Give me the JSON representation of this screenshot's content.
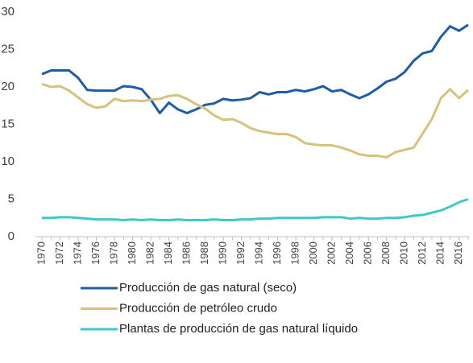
{
  "chart_data": {
    "type": "line",
    "x": [
      1970,
      1971,
      1972,
      1973,
      1974,
      1975,
      1976,
      1977,
      1978,
      1979,
      1980,
      1981,
      1982,
      1983,
      1984,
      1985,
      1986,
      1987,
      1988,
      1989,
      1990,
      1991,
      1992,
      1993,
      1994,
      1995,
      1996,
      1997,
      1998,
      1999,
      2000,
      2001,
      2002,
      2003,
      2004,
      2005,
      2006,
      2007,
      2008,
      2009,
      2010,
      2011,
      2012,
      2013,
      2014,
      2015,
      2016,
      2017
    ],
    "xlim": [
      1970,
      2017
    ],
    "xticks": [
      1970,
      1972,
      1974,
      1976,
      1978,
      1980,
      1982,
      1984,
      1986,
      1988,
      1990,
      1992,
      1994,
      1996,
      1998,
      2000,
      2002,
      2004,
      2006,
      2008,
      2010,
      2012,
      2014,
      2016
    ],
    "ylim": [
      0,
      30
    ],
    "yticks": [
      0,
      5,
      10,
      15,
      20,
      25,
      30
    ],
    "grid": false,
    "legend": "bottom",
    "series": [
      {
        "name": "Producción de gas natural (seco)",
        "color": "#1f5ca6",
        "values": [
          21.7,
          22.2,
          22.2,
          22.2,
          21.2,
          19.6,
          19.5,
          19.5,
          19.5,
          20.1,
          20.0,
          19.7,
          18.3,
          16.5,
          17.9,
          17.0,
          16.5,
          17.0,
          17.6,
          17.8,
          18.4,
          18.2,
          18.3,
          18.5,
          19.3,
          19.0,
          19.3,
          19.3,
          19.6,
          19.4,
          19.7,
          20.1,
          19.4,
          19.6,
          19.0,
          18.5,
          19.0,
          19.8,
          20.7,
          21.1,
          22.0,
          23.5,
          24.5,
          24.8,
          26.7,
          28.1,
          27.5,
          28.3
        ]
      },
      {
        "name": "Producción de petróleo crudo",
        "color": "#d6c27a",
        "values": [
          20.4,
          20.0,
          20.1,
          19.5,
          18.6,
          17.7,
          17.2,
          17.4,
          18.4,
          18.1,
          18.2,
          18.1,
          18.3,
          18.4,
          18.8,
          18.9,
          18.4,
          17.7,
          17.1,
          16.2,
          15.6,
          15.7,
          15.2,
          14.5,
          14.1,
          13.9,
          13.7,
          13.7,
          13.3,
          12.5,
          12.3,
          12.2,
          12.2,
          11.9,
          11.5,
          11.0,
          10.8,
          10.8,
          10.6,
          11.3,
          11.6,
          11.9,
          13.8,
          15.7,
          18.5,
          19.7,
          18.5,
          19.6
        ]
      },
      {
        "name": "Plantas de producción de gas natural líquido",
        "color": "#3ec9c9",
        "values": [
          2.5,
          2.5,
          2.6,
          2.6,
          2.5,
          2.4,
          2.3,
          2.3,
          2.3,
          2.2,
          2.3,
          2.2,
          2.3,
          2.2,
          2.2,
          2.3,
          2.2,
          2.2,
          2.2,
          2.3,
          2.2,
          2.2,
          2.3,
          2.3,
          2.4,
          2.4,
          2.5,
          2.5,
          2.5,
          2.5,
          2.5,
          2.6,
          2.6,
          2.6,
          2.4,
          2.5,
          2.4,
          2.4,
          2.5,
          2.5,
          2.6,
          2.8,
          2.9,
          3.2,
          3.5,
          4.0,
          4.6,
          5.0
        ]
      }
    ]
  }
}
